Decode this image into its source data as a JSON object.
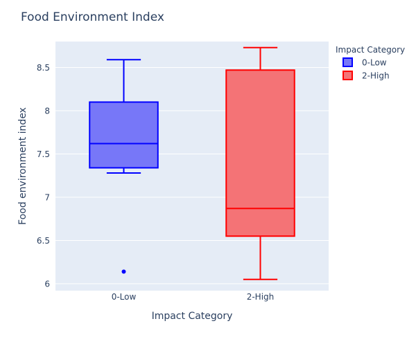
{
  "chart_data": {
    "type": "box",
    "title": "Food Environment Index",
    "xlabel": "Impact Category",
    "ylabel": "Food environment index",
    "categories": [
      "0-Low",
      "2-High"
    ],
    "yticks": [
      6,
      6.5,
      7,
      7.5,
      8,
      8.5
    ],
    "ylim": [
      5.92,
      8.8
    ],
    "grid": true,
    "legend": {
      "title": "Impact Category",
      "placement": "top-right"
    },
    "series": [
      {
        "name": "0-Low",
        "category": "0-Low",
        "color": "#0000ff",
        "fill": "#7777f8",
        "min": 7.28,
        "q1": 7.34,
        "median": 7.62,
        "q3": 8.1,
        "max": 8.59,
        "outliers": [
          6.14
        ]
      },
      {
        "name": "2-High",
        "category": "2-High",
        "color": "#ff0000",
        "fill": "#f47376",
        "min": 6.05,
        "q1": 6.55,
        "median": 6.87,
        "q3": 8.47,
        "max": 8.73,
        "outliers": []
      }
    ]
  }
}
